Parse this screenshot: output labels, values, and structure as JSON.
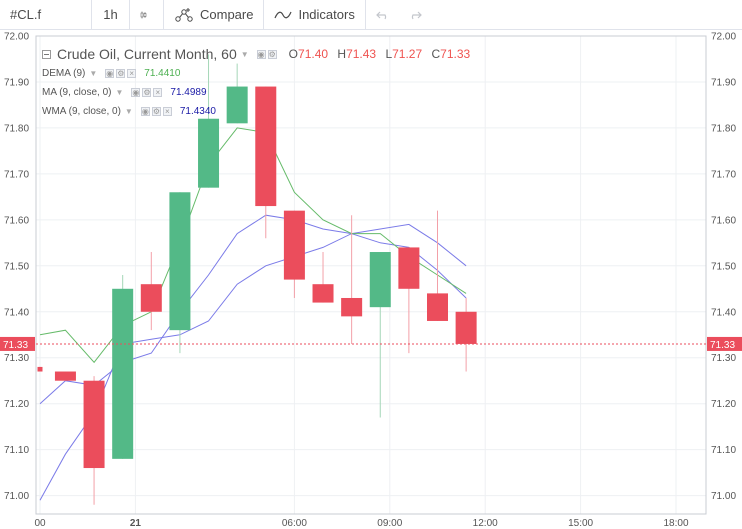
{
  "toolbar": {
    "symbol": "#CL.f",
    "interval": "1h",
    "compare_label": "Compare",
    "indicators_label": "Indicators"
  },
  "legend": {
    "title": "Crude Oil, Current Month, 60",
    "ohlc": {
      "o_key": "O",
      "o": "71.40",
      "h_key": "H",
      "h": "71.43",
      "l_key": "L",
      "l": "71.27",
      "c_key": "C",
      "c": "71.33"
    },
    "studies": [
      {
        "name": "DEMA (9)",
        "value": "71.4410",
        "color": "#4caf50"
      },
      {
        "name": "MA (9, close, 0)",
        "value": "71.4989",
        "color": "#1a1aa6"
      },
      {
        "name": "WMA (9, close, 0)",
        "value": "71.4340",
        "color": "#1a1aa6"
      }
    ]
  },
  "colors": {
    "up": "#53b987",
    "down": "#eb4d5c",
    "dema": "#66bb6a",
    "ma": "#7b7be8",
    "wma": "#7b7be8",
    "grid": "#eef0f3",
    "axis_text": "#555555",
    "price_line": "#eb4d5c"
  },
  "chart_data": {
    "type": "candlestick",
    "ylim": [
      70.96,
      72.0
    ],
    "xlim": [
      -0.1,
      20.9
    ],
    "y_ticks": [
      "72.00",
      "71.90",
      "71.80",
      "71.70",
      "71.60",
      "71.50",
      "71.40",
      "71.30",
      "71.20",
      "71.10",
      "71.00"
    ],
    "x_ticks": [
      {
        "i": 0,
        "label": "00"
      },
      {
        "i": 3,
        "label": "21"
      },
      {
        "i": 8,
        "label": "06:00"
      },
      {
        "i": 11,
        "label": "09:00"
      },
      {
        "i": 14,
        "label": "12:00"
      },
      {
        "i": 17,
        "label": "15:00"
      },
      {
        "i": 20,
        "label": "18:00"
      }
    ],
    "candles": [
      {
        "i": 0,
        "o": 71.28,
        "h": 71.28,
        "l": 71.27,
        "c": 71.27
      },
      {
        "i": 0.8,
        "o": 71.27,
        "h": 71.27,
        "l": 71.25,
        "c": 71.25
      },
      {
        "i": 1.7,
        "o": 71.25,
        "h": 71.26,
        "l": 70.98,
        "c": 71.06
      },
      {
        "i": 2.6,
        "o": 71.08,
        "h": 71.48,
        "l": 71.08,
        "c": 71.45
      },
      {
        "i": 3.5,
        "o": 71.46,
        "h": 71.53,
        "l": 71.36,
        "c": 71.4
      },
      {
        "i": 4.4,
        "o": 71.36,
        "h": 71.66,
        "l": 71.31,
        "c": 71.66
      },
      {
        "i": 5.3,
        "o": 71.67,
        "h": 71.96,
        "l": 71.67,
        "c": 71.82
      },
      {
        "i": 6.2,
        "o": 71.81,
        "h": 71.94,
        "l": 71.81,
        "c": 71.89
      },
      {
        "i": 7.1,
        "o": 71.89,
        "h": 71.89,
        "l": 71.56,
        "c": 71.63
      },
      {
        "i": 8.0,
        "o": 71.62,
        "h": 71.62,
        "l": 71.43,
        "c": 71.47
      },
      {
        "i": 8.9,
        "o": 71.46,
        "h": 71.53,
        "l": 71.42,
        "c": 71.42
      },
      {
        "i": 9.8,
        "o": 71.43,
        "h": 71.61,
        "l": 71.33,
        "c": 71.39
      },
      {
        "i": 10.7,
        "o": 71.41,
        "h": 71.53,
        "l": 71.17,
        "c": 71.53
      },
      {
        "i": 11.6,
        "o": 71.54,
        "h": 71.54,
        "l": 71.31,
        "c": 71.45
      },
      {
        "i": 12.5,
        "o": 71.44,
        "h": 71.62,
        "l": 71.38,
        "c": 71.38
      },
      {
        "i": 13.4,
        "o": 71.4,
        "h": 71.43,
        "l": 71.27,
        "c": 71.33
      }
    ],
    "dema": [
      [
        0,
        71.35
      ],
      [
        0.8,
        71.36
      ],
      [
        1.7,
        71.29
      ],
      [
        2.6,
        71.37
      ],
      [
        3.5,
        71.4
      ],
      [
        4.4,
        71.55
      ],
      [
        5.3,
        71.72
      ],
      [
        6.2,
        71.8
      ],
      [
        7.1,
        71.79
      ],
      [
        8.0,
        71.66
      ],
      [
        8.9,
        71.6
      ],
      [
        9.8,
        71.57
      ],
      [
        10.7,
        71.57
      ],
      [
        11.6,
        71.52
      ],
      [
        12.5,
        71.48
      ],
      [
        13.4,
        71.44
      ]
    ],
    "ma": [
      [
        0,
        71.2
      ],
      [
        0.8,
        71.25
      ],
      [
        1.7,
        71.24
      ],
      [
        2.6,
        71.29
      ],
      [
        3.5,
        71.31
      ],
      [
        4.4,
        71.4
      ],
      [
        5.3,
        71.48
      ],
      [
        6.2,
        71.57
      ],
      [
        7.1,
        71.61
      ],
      [
        8.0,
        71.6
      ],
      [
        8.9,
        71.58
      ],
      [
        9.8,
        71.57
      ],
      [
        10.7,
        71.58
      ],
      [
        11.6,
        71.59
      ],
      [
        12.5,
        71.55
      ],
      [
        13.4,
        71.5
      ]
    ],
    "wma": [
      [
        0,
        70.99
      ],
      [
        0.8,
        71.09
      ],
      [
        1.7,
        71.18
      ],
      [
        2.6,
        71.33
      ],
      [
        3.5,
        71.34
      ],
      [
        4.4,
        71.35
      ],
      [
        5.3,
        71.38
      ],
      [
        6.2,
        71.46
      ],
      [
        7.1,
        71.5
      ],
      [
        8.0,
        71.52
      ],
      [
        8.9,
        71.54
      ],
      [
        9.8,
        71.57
      ],
      [
        10.7,
        71.55
      ],
      [
        11.6,
        71.54
      ],
      [
        12.5,
        71.49
      ],
      [
        13.4,
        71.43
      ]
    ],
    "last_price": 71.33,
    "last_price_label": "71.33"
  }
}
